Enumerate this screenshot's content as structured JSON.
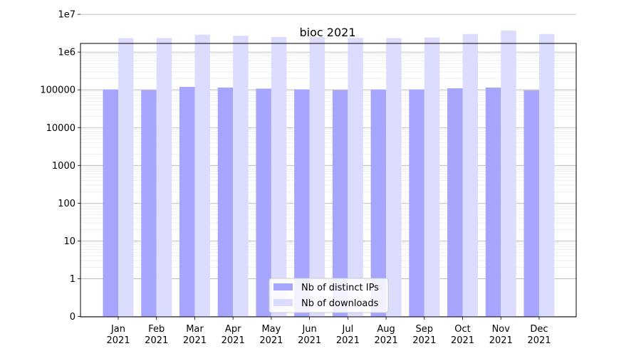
{
  "chart_data": {
    "type": "bar",
    "title": "bioc 2021",
    "xlabel": "",
    "ylabel": "",
    "yscale": "symlog",
    "ylim": [
      0,
      20000000
    ],
    "grid": true,
    "legend_position": "lower-center",
    "categories": [
      {
        "month": "Jan",
        "year": "2021"
      },
      {
        "month": "Feb",
        "year": "2021"
      },
      {
        "month": "Mar",
        "year": "2021"
      },
      {
        "month": "Apr",
        "year": "2021"
      },
      {
        "month": "May",
        "year": "2021"
      },
      {
        "month": "Jun",
        "year": "2021"
      },
      {
        "month": "Jul",
        "year": "2021"
      },
      {
        "month": "Aug",
        "year": "2021"
      },
      {
        "month": "Sep",
        "year": "2021"
      },
      {
        "month": "Oct",
        "year": "2021"
      },
      {
        "month": "Nov",
        "year": "2021"
      },
      {
        "month": "Dec",
        "year": "2021"
      }
    ],
    "ytick_labels": [
      "0",
      "1",
      "10",
      "100",
      "1000",
      "10000",
      "100000",
      "1e6",
      "1e7"
    ],
    "ytick_values": [
      0,
      1,
      10,
      100,
      1000,
      10000,
      100000,
      1000000,
      10000000
    ],
    "series": [
      {
        "name": "Nb of distinct IPs",
        "color": "#a6a6ff",
        "values": [
          102000,
          98000,
          120000,
          115000,
          108000,
          103000,
          98000,
          102000,
          102000,
          110000,
          115000,
          97000
        ]
      },
      {
        "name": "Nb of downloads",
        "color": "#dcdcff",
        "values": [
          2350000,
          2350000,
          2900000,
          2700000,
          2500000,
          2500000,
          2350000,
          2350000,
          2450000,
          3000000,
          3700000,
          3000000
        ]
      }
    ]
  }
}
